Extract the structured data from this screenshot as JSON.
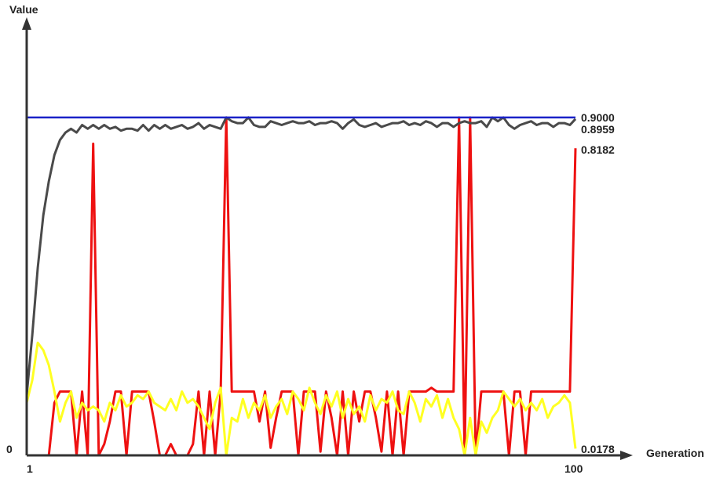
{
  "chart_data": {
    "type": "line",
    "ylabel": "Value",
    "xlabel": "Generation",
    "x_tick_labels": [
      "1",
      "100"
    ],
    "y_tick_labels": [
      "0"
    ],
    "xlim": [
      1,
      100
    ],
    "ylim": [
      0,
      1.0
    ],
    "grid": false,
    "legend": "none",
    "series": [
      {
        "color": "#1a22c8",
        "end_label": "0.9000",
        "values": [
          0.9,
          0.9,
          0.9,
          0.9,
          0.9,
          0.9,
          0.9,
          0.9,
          0.9,
          0.9,
          0.9,
          0.9,
          0.9,
          0.9,
          0.9,
          0.9,
          0.9,
          0.9,
          0.9,
          0.9,
          0.9,
          0.9,
          0.9,
          0.9,
          0.9,
          0.9,
          0.9,
          0.9,
          0.9,
          0.9,
          0.9,
          0.9,
          0.9,
          0.9,
          0.9,
          0.9,
          0.9,
          0.9,
          0.9,
          0.9,
          0.9,
          0.9,
          0.9,
          0.9,
          0.9,
          0.9,
          0.9,
          0.9,
          0.9,
          0.9,
          0.9,
          0.9,
          0.9,
          0.9,
          0.9,
          0.9,
          0.9,
          0.9,
          0.9,
          0.9,
          0.9,
          0.9,
          0.9,
          0.9,
          0.9,
          0.9,
          0.9,
          0.9,
          0.9,
          0.9,
          0.9,
          0.9,
          0.9,
          0.9,
          0.9,
          0.9,
          0.9,
          0.9,
          0.9,
          0.9,
          0.9,
          0.9,
          0.9,
          0.9,
          0.9,
          0.9,
          0.9,
          0.9,
          0.9,
          0.9,
          0.9,
          0.9,
          0.9,
          0.9,
          0.9,
          0.9,
          0.9,
          0.9,
          0.9,
          0.9
        ]
      },
      {
        "color": "#4a4a4a",
        "end_label": "0.8959",
        "values": [
          0.16,
          0.32,
          0.5,
          0.64,
          0.73,
          0.8,
          0.84,
          0.86,
          0.87,
          0.86,
          0.88,
          0.87,
          0.88,
          0.87,
          0.88,
          0.87,
          0.875,
          0.865,
          0.87,
          0.87,
          0.865,
          0.88,
          0.865,
          0.88,
          0.87,
          0.88,
          0.87,
          0.875,
          0.88,
          0.87,
          0.875,
          0.885,
          0.87,
          0.88,
          0.875,
          0.87,
          0.9,
          0.89,
          0.885,
          0.885,
          0.9,
          0.88,
          0.875,
          0.875,
          0.89,
          0.885,
          0.88,
          0.885,
          0.89,
          0.885,
          0.885,
          0.89,
          0.88,
          0.885,
          0.885,
          0.89,
          0.885,
          0.87,
          0.885,
          0.895,
          0.88,
          0.875,
          0.88,
          0.885,
          0.875,
          0.88,
          0.885,
          0.885,
          0.89,
          0.88,
          0.885,
          0.88,
          0.89,
          0.885,
          0.875,
          0.885,
          0.885,
          0.875,
          0.885,
          0.89,
          0.885,
          0.885,
          0.89,
          0.875,
          0.9,
          0.89,
          0.9,
          0.88,
          0.87,
          0.88,
          0.885,
          0.89,
          0.88,
          0.885,
          0.885,
          0.875,
          0.885,
          0.885,
          0.88,
          0.896
        ]
      },
      {
        "color": "#ee1111",
        "end_label": "0.8182",
        "values": [
          0,
          0,
          0,
          0.0,
          0,
          0.14,
          0.17,
          0.17,
          0.17,
          0.0,
          0.17,
          0.0,
          0.83,
          0.0,
          0.03,
          0.09,
          0.17,
          0.17,
          0.0,
          0.17,
          0.17,
          0.17,
          0.17,
          0.09,
          0.0,
          0.0,
          0.03,
          0.0,
          0.0,
          0.0,
          0.03,
          0.17,
          0.0,
          0.17,
          0.0,
          0.17,
          0.9,
          0.17,
          0.17,
          0.17,
          0.17,
          0.17,
          0.09,
          0.17,
          0.02,
          0.1,
          0.17,
          0.17,
          0.17,
          0.0,
          0.17,
          0.17,
          0.17,
          0.01,
          0.17,
          0.1,
          0.0,
          0.17,
          0.0,
          0.17,
          0.09,
          0.17,
          0.17,
          0.1,
          0.01,
          0.17,
          0.0,
          0.17,
          0.0,
          0.17,
          0.17,
          0.17,
          0.17,
          0.18,
          0.17,
          0.17,
          0.17,
          0.17,
          0.9,
          0.0,
          0.9,
          0.0,
          0.17,
          0.17,
          0.17,
          0.17,
          0.17,
          0.0,
          0.17,
          0.17,
          0.0,
          0.17,
          0.17,
          0.17,
          0.17,
          0.17,
          0.17,
          0.17,
          0.17,
          0.818
        ]
      },
      {
        "color": "#ffff22",
        "end_label": "0.0178",
        "values": [
          0.14,
          0.2,
          0.3,
          0.28,
          0.24,
          0.17,
          0.09,
          0.14,
          0.17,
          0.1,
          0.14,
          0.12,
          0.13,
          0.12,
          0.09,
          0.14,
          0.12,
          0.16,
          0.13,
          0.14,
          0.16,
          0.15,
          0.17,
          0.14,
          0.13,
          0.12,
          0.15,
          0.12,
          0.17,
          0.14,
          0.15,
          0.13,
          0.1,
          0.07,
          0.14,
          0.18,
          0.0,
          0.1,
          0.09,
          0.15,
          0.1,
          0.14,
          0.12,
          0.16,
          0.1,
          0.13,
          0.15,
          0.11,
          0.17,
          0.15,
          0.12,
          0.18,
          0.14,
          0.11,
          0.16,
          0.13,
          0.17,
          0.1,
          0.15,
          0.11,
          0.13,
          0.09,
          0.16,
          0.12,
          0.15,
          0.14,
          0.17,
          0.12,
          0.11,
          0.17,
          0.14,
          0.09,
          0.15,
          0.13,
          0.16,
          0.1,
          0.15,
          0.1,
          0.07,
          0.0,
          0.1,
          0.0,
          0.09,
          0.06,
          0.1,
          0.12,
          0.17,
          0.15,
          0.13,
          0.15,
          0.12,
          0.14,
          0.12,
          0.15,
          0.1,
          0.13,
          0.14,
          0.16,
          0.14,
          0.018
        ]
      }
    ]
  }
}
